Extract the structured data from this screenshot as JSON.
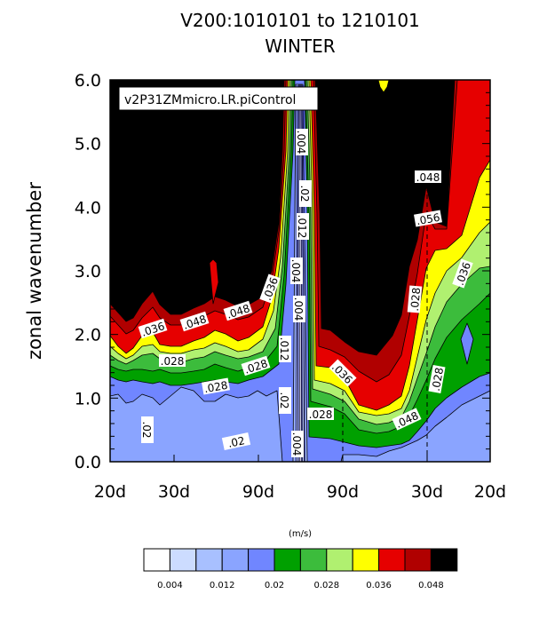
{
  "chart_data": {
    "type": "heatmap",
    "title_line1": "V200:1010101 to 1210101",
    "title_line2": "WINTER",
    "ylabel": "zonal wavenumber",
    "y_ticks": [
      "0.0",
      "1.0",
      "2.0",
      "3.0",
      "4.0",
      "5.0",
      "6.0"
    ],
    "ylim": [
      0,
      6
    ],
    "x_ticks": [
      "20d",
      "30d",
      "90d",
      "90d",
      "30d",
      "20d"
    ],
    "annotation": "v2P31ZMmicro.LR.piControl",
    "colorbar_units": "(m/s)",
    "colorbar_labels": [
      "0.004",
      "0.012",
      "0.02",
      "0.028",
      "0.036",
      "0.048"
    ],
    "contour_labels": [
      ".004",
      ".02",
      ".012",
      ".004",
      ".004",
      ".036",
      ".048",
      ".048",
      ".036",
      ".028",
      ".028",
      ".028",
      ".012",
      ".02",
      ".02",
      ".02",
      ".004",
      ".028",
      ".036",
      ".048",
      ".056",
      ".028",
      ".028",
      ".036",
      ".048"
    ],
    "levels": [
      0.004,
      0.008,
      0.012,
      0.016,
      0.02,
      0.024,
      0.028,
      0.032,
      0.036,
      0.04,
      0.044,
      0.048
    ],
    "colors": [
      "#ffffff",
      "#ccdcff",
      "#a8c0ff",
      "#8aa4ff",
      "#7086ff",
      "#00a000",
      "#3cbc3c",
      "#b0f070",
      "#ffff00",
      "#e60000",
      "#b00000",
      "#000000"
    ],
    "grid": false
  }
}
